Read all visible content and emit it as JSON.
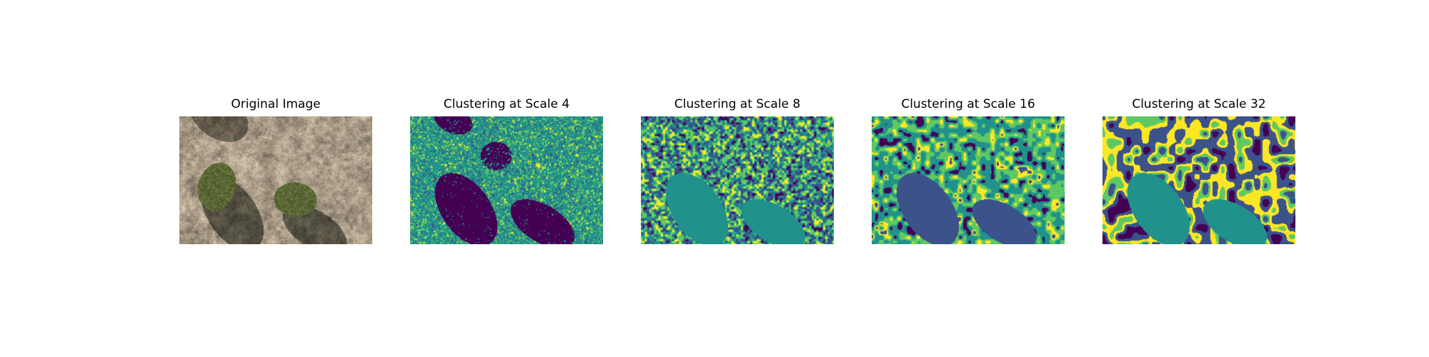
{
  "panels": [
    {
      "title": "Original Image",
      "kind": "photo"
    },
    {
      "title": "Clustering at Scale 4",
      "kind": "cluster-map",
      "scale": 4
    },
    {
      "title": "Clustering at Scale 8",
      "kind": "cluster-map",
      "scale": 8
    },
    {
      "title": "Clustering at Scale 16",
      "kind": "cluster-map",
      "scale": 16
    },
    {
      "title": "Clustering at Scale 32",
      "kind": "cluster-map",
      "scale": 32
    }
  ],
  "palette": {
    "viridis": [
      "#440154",
      "#3b528b",
      "#21918c",
      "#5ec962",
      "#fde725"
    ],
    "photo": {
      "ground": "#a89a86",
      "dry_grass": "#b9a37f",
      "shadow": "#5b5447",
      "shrub": "#4f5a2f",
      "shrub_dark": "#3a4223"
    }
  }
}
